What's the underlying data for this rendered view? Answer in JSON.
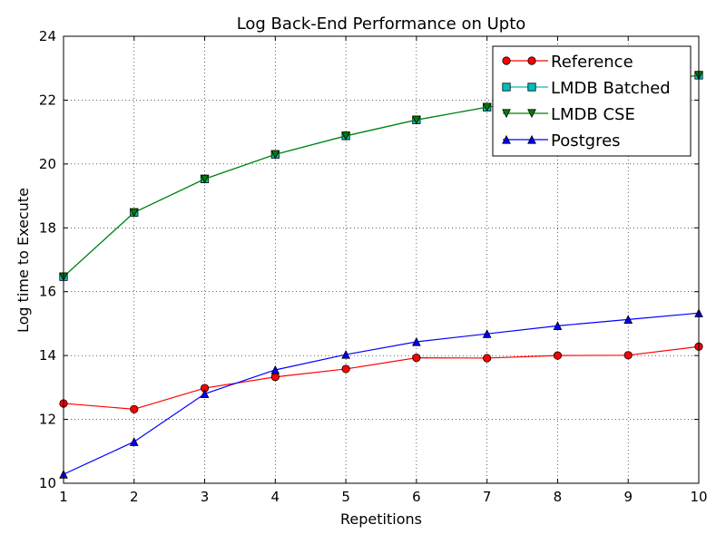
{
  "chart_data": {
    "type": "line",
    "title": "Log Back-End Performance on  Upto",
    "xlabel": "Repetitions",
    "ylabel": "Log time to Execute",
    "xlim": [
      1,
      10
    ],
    "ylim": [
      10,
      24
    ],
    "xticks": [
      1,
      2,
      3,
      4,
      5,
      6,
      7,
      8,
      9,
      10
    ],
    "yticks": [
      10,
      12,
      14,
      16,
      18,
      20,
      22,
      24
    ],
    "grid": true,
    "legend_position": "top-right",
    "x": [
      1,
      2,
      3,
      4,
      5,
      6,
      7,
      8,
      9,
      10
    ],
    "series": [
      {
        "name": "Reference",
        "color": "#ff0000",
        "marker": "circle",
        "values": [
          12.5,
          12.32,
          12.98,
          13.33,
          13.58,
          13.93,
          13.92,
          14.0,
          14.01,
          14.28
        ]
      },
      {
        "name": "LMDB Batched",
        "color": "#00bfbf",
        "marker": "square",
        "values": [
          16.47,
          18.48,
          19.53,
          20.3,
          20.88,
          21.38,
          21.78,
          22.08,
          22.47,
          22.78
        ]
      },
      {
        "name": "LMDB CSE",
        "color": "#008000",
        "marker": "triangle-down",
        "values": [
          16.47,
          18.48,
          19.53,
          20.3,
          20.88,
          21.38,
          21.78,
          22.08,
          22.47,
          22.78
        ]
      },
      {
        "name": "Postgres",
        "color": "#0000ff",
        "marker": "triangle-up",
        "values": [
          10.28,
          11.3,
          12.8,
          13.55,
          14.03,
          14.43,
          14.68,
          14.93,
          15.13,
          15.33
        ]
      }
    ]
  }
}
